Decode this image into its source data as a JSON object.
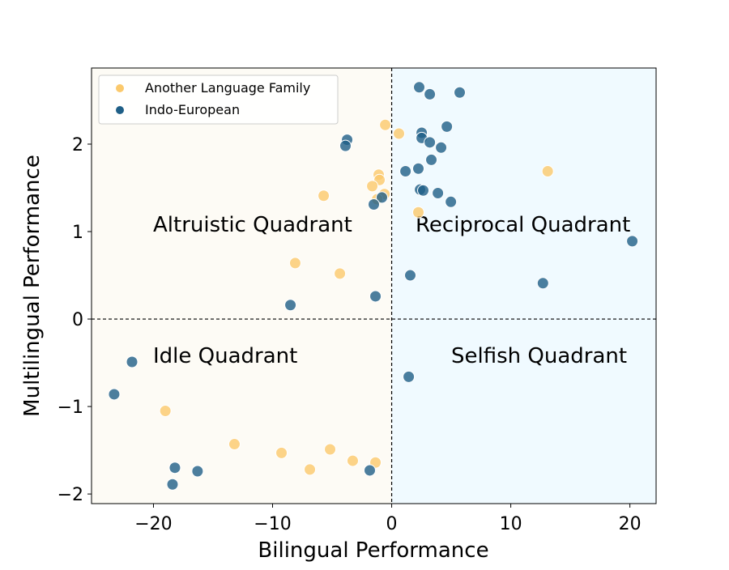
{
  "chart_data": {
    "type": "scatter",
    "title": "",
    "xlabel": "Bilingual Performance",
    "ylabel": "Multilingual Performance",
    "xlim": [
      -25.2,
      22.2
    ],
    "ylim": [
      -2.11,
      2.87
    ],
    "xticks": [
      -20,
      -10,
      0,
      10,
      20
    ],
    "xtick_labels": [
      "−20",
      "−10",
      "0",
      "10",
      "20"
    ],
    "yticks": [
      -2,
      -1,
      0,
      1,
      2
    ],
    "ytick_labels": [
      "−2",
      "−1",
      "0",
      "1",
      "2"
    ],
    "grid": false,
    "legend_position": "top-left",
    "reference_lines": {
      "x": 0,
      "y": 0,
      "style": "dashed"
    },
    "quadrant_labels": {
      "top_left": "Altruistic Quadrant",
      "top_right": "Reciprocal Quadrant",
      "bottom_left": "Idle Quadrant",
      "bottom_right": "Selfish Quadrant"
    },
    "quadrant_backgrounds": {
      "left": "#fdfbf5",
      "right": "#f0faff"
    },
    "series": [
      {
        "name": "Another Language Family",
        "color": "#fbc96c",
        "x": [
          -0.54,
          0.61,
          13.1,
          -1.09,
          -1.02,
          -1.63,
          -0.61,
          -1.22,
          -5.71,
          2.24,
          -8.1,
          -4.35,
          -19.0,
          -13.2,
          -9.25,
          -5.17,
          -6.87,
          -3.27,
          -1.36
        ],
        "y": [
          2.22,
          2.12,
          1.69,
          1.65,
          1.59,
          1.52,
          1.43,
          1.37,
          1.41,
          1.22,
          0.64,
          0.52,
          -1.05,
          -1.43,
          -1.53,
          -1.49,
          -1.72,
          -1.62,
          -1.64
        ]
      },
      {
        "name": "Indo-European",
        "color": "#1f5f87",
        "x": [
          2.31,
          3.2,
          5.71,
          4.63,
          2.52,
          2.52,
          3.2,
          4.15,
          3.33,
          1.16,
          2.24,
          2.38,
          2.65,
          3.88,
          4.97,
          20.2,
          12.7,
          1.56,
          1.43,
          -3.74,
          -3.88,
          -0.82,
          -1.5,
          -8.5,
          -1.36,
          -21.8,
          -23.3,
          -18.2,
          -18.4,
          -16.3,
          -1.84
        ],
        "y": [
          2.65,
          2.57,
          2.59,
          2.2,
          2.13,
          2.07,
          2.02,
          1.96,
          1.82,
          1.69,
          1.72,
          1.48,
          1.47,
          1.44,
          1.34,
          0.89,
          0.41,
          0.5,
          -0.66,
          2.05,
          1.98,
          1.39,
          1.31,
          0.16,
          0.26,
          -0.49,
          -0.86,
          -1.7,
          -1.89,
          -1.74,
          -1.73
        ]
      }
    ]
  }
}
